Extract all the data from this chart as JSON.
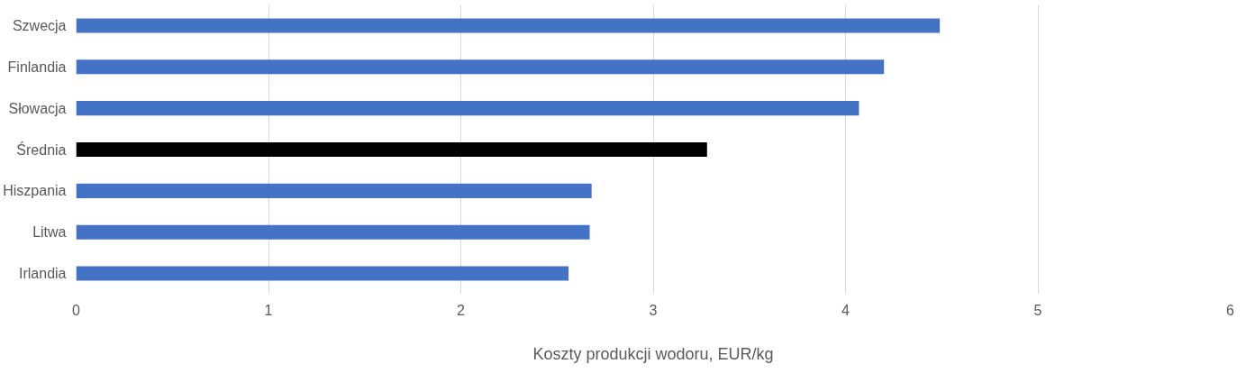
{
  "chart_data": {
    "type": "bar",
    "orientation": "horizontal",
    "xlabel": "Koszty produkcji wodoru, EUR/kg",
    "categories": [
      "Szwecja",
      "Finlandia",
      "Słowacja",
      "Średnia",
      "Hiszpania",
      "Litwa",
      "Irlandia"
    ],
    "values": [
      4.49,
      4.2,
      4.07,
      3.28,
      2.68,
      2.67,
      2.56
    ],
    "colors": [
      "#4472c4",
      "#4472c4",
      "#4472c4",
      "#000000",
      "#4472c4",
      "#4472c4",
      "#4472c4"
    ],
    "xlim": [
      0,
      6
    ],
    "xticks": [
      0,
      1,
      2,
      3,
      4,
      5,
      6
    ],
    "grid": "x"
  }
}
